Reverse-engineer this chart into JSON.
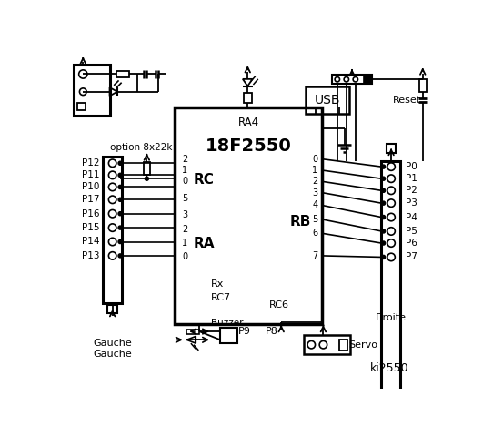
{
  "bg_color": "#ffffff",
  "fg_color": "#000000",
  "left_pins": [
    "P12",
    "P11",
    "P10",
    "P17",
    "P16",
    "P15",
    "P14",
    "P13"
  ],
  "right_pins": [
    "P0",
    "P1",
    "P2",
    "P3",
    "P4",
    "P5",
    "P6",
    "P7"
  ],
  "rc_pin_labels": [
    "2",
    "1",
    "0",
    "5",
    "3",
    "2",
    "1",
    "0"
  ],
  "rb_pin_labels": [
    "0",
    "1",
    "2",
    "3",
    "4",
    "5",
    "6",
    "7"
  ]
}
